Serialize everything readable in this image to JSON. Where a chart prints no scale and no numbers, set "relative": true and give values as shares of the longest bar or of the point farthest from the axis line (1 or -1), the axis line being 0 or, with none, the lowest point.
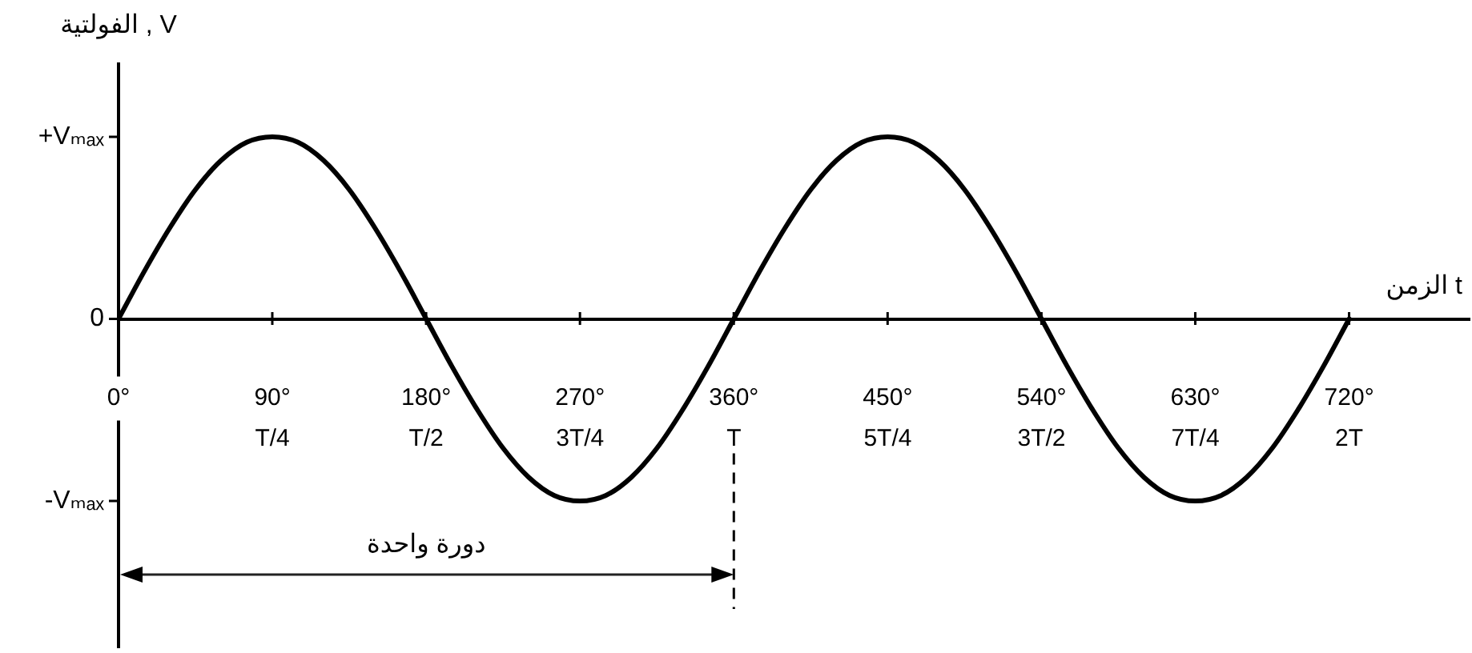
{
  "chart_data": {
    "type": "line",
    "relative": true,
    "xlabel": "الزمن t",
    "ylabel": "الفولتية , V",
    "annotations": [
      "دورة واحدة",
      "+Vₘₐₓ",
      "0",
      "-Vₘₐₓ"
    ],
    "x": [
      0,
      15,
      30,
      45,
      60,
      75,
      90,
      105,
      120,
      135,
      150,
      165,
      180,
      195,
      210,
      225,
      240,
      255,
      270,
      285,
      300,
      315,
      330,
      345,
      360,
      375,
      390,
      405,
      420,
      435,
      450,
      465,
      480,
      495,
      510,
      525,
      540,
      555,
      570,
      585,
      600,
      615,
      630,
      645,
      660,
      675,
      690,
      705,
      720
    ],
    "values": [
      0,
      0.26,
      0.5,
      0.71,
      0.87,
      0.97,
      1,
      0.97,
      0.87,
      0.71,
      0.5,
      0.26,
      0,
      -0.26,
      -0.5,
      -0.71,
      -0.87,
      -0.97,
      -1,
      -0.97,
      -0.87,
      -0.71,
      -0.5,
      -0.26,
      0,
      0.26,
      0.5,
      0.71,
      0.87,
      0.97,
      1,
      0.97,
      0.87,
      0.71,
      0.5,
      0.26,
      0,
      -0.26,
      -0.5,
      -0.71,
      -0.87,
      -0.97,
      -1,
      -0.97,
      -0.87,
      -0.71,
      -0.5,
      -0.26,
      0
    ],
    "color": "#000000",
    "xlim": [
      0,
      790
    ],
    "xticks": [
      {
        "value": 0,
        "label": "0°"
      },
      {
        "value": 90,
        "label": "90°\nT/4"
      },
      {
        "value": 180,
        "label": "180°\nT/2"
      },
      {
        "value": 270,
        "label": "270°\n3T/4"
      },
      {
        "value": 360,
        "label": "360°\nT"
      },
      {
        "value": 450,
        "label": "450°\n5T/4"
      },
      {
        "value": 540,
        "label": "540°\n3T/2"
      },
      {
        "value": 630,
        "label": "630°\n7T/4"
      },
      {
        "value": 720,
        "label": "720°\n2T"
      }
    ],
    "ref_lines": [
      {
        "axis": "x",
        "value": 360,
        "line_style": "dashed"
      }
    ]
  }
}
